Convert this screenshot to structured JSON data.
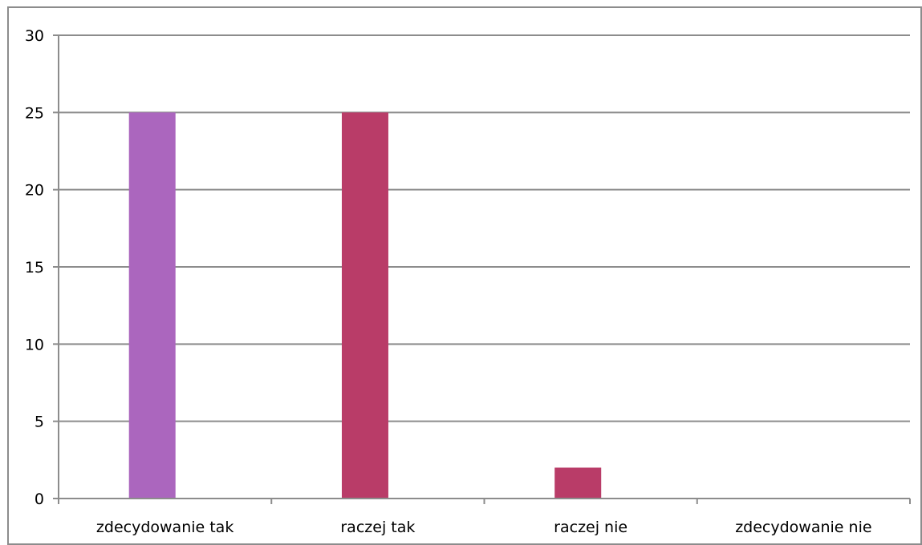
{
  "chart_data": {
    "type": "bar",
    "title": "",
    "xlabel": "",
    "ylabel": "",
    "categories": [
      "zdecydowanie tak",
      "raczej tak",
      "raczej nie",
      "zdecydowanie nie"
    ],
    "values": [
      25,
      25,
      2,
      0
    ],
    "bar_colors": [
      "#ab66be",
      "#b93c68",
      "#b93c68",
      "#b93c68"
    ],
    "ylim": [
      0,
      30
    ],
    "yticks": [
      0,
      5,
      10,
      15,
      20,
      25,
      30
    ],
    "grid": true,
    "legend": "none"
  },
  "colors": {
    "grid": "#8c8c8c",
    "axis": "#8c8c8c",
    "frame": "#8c8c8c",
    "text": "#000000"
  }
}
